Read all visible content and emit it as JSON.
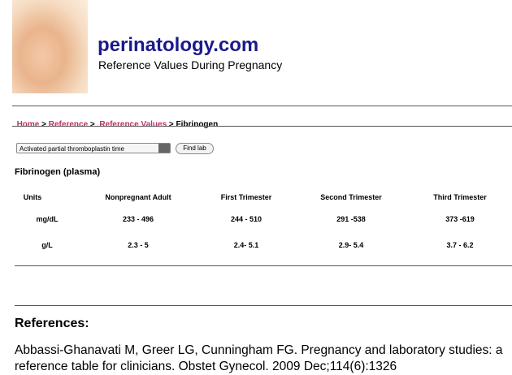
{
  "header": {
    "title": "perinatology.com",
    "subtitle": "Reference Values During Pregnancy"
  },
  "breadcrumb": {
    "links": [
      "Home",
      "Reference",
      "Reference Values"
    ],
    "separator": ">",
    "current": "Fibrinogen"
  },
  "form": {
    "select": "Activated partial thromboplastin time",
    "button": "Find lab"
  },
  "table": {
    "caption": "Fibrinogen (plasma)",
    "columns": [
      "Units",
      "Nonpregnant Adult",
      "First Trimester",
      "Second Trimester",
      "Third Trimester"
    ],
    "rows": [
      [
        "mg/dL",
        "233 - 496",
        "244 - 510",
        "291 -538",
        "373 -619"
      ],
      [
        "g/L",
        "2.3 - 5",
        "2.4- 5.1",
        "2.9- 5.4",
        "3.7 - 6.2"
      ]
    ]
  },
  "references": {
    "heading": "References:",
    "items": [
      "Abbassi-Ghanavati M, Greer LG, Cunningham FG. Pregnancy and laboratory studies: a reference table for clinicians. Obstet Gynecol. 2009 Dec;114(6):1326"
    ]
  }
}
